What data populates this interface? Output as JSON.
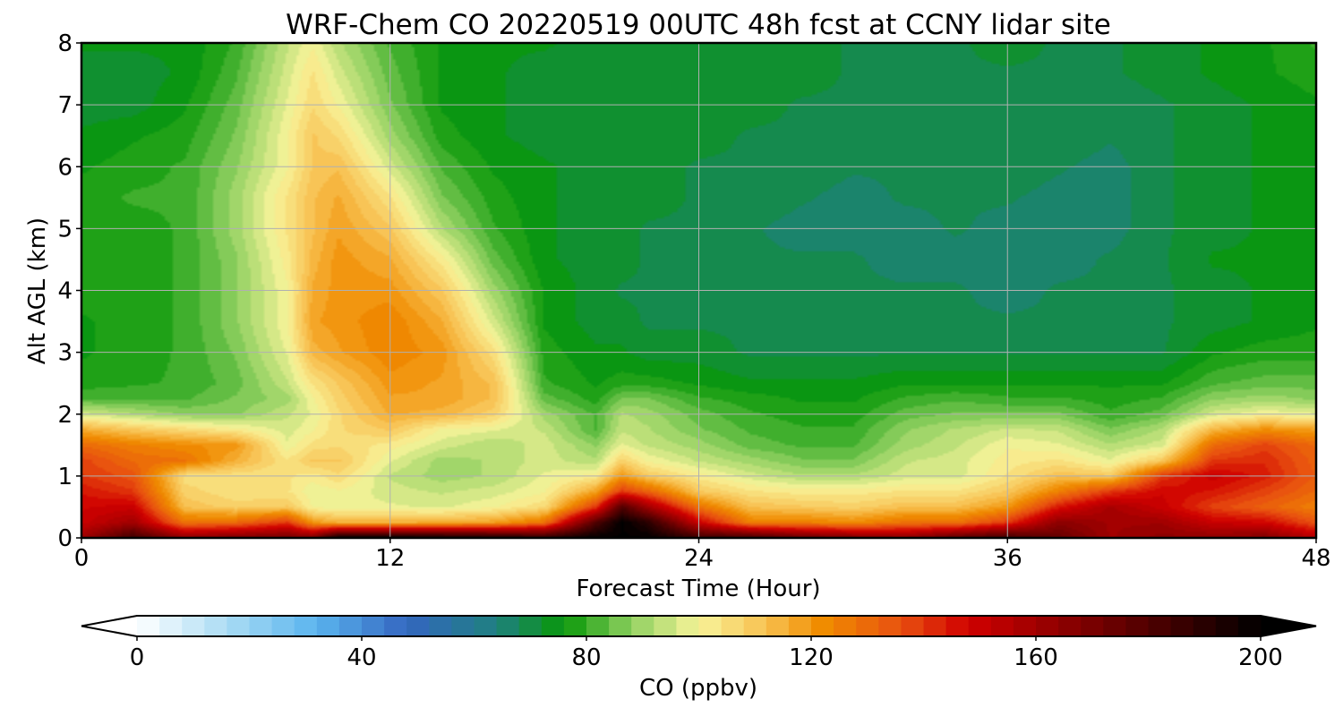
{
  "chart_data": {
    "type": "heatmap",
    "title": "WRF-Chem CO  20220519 00UTC 48h fcst at CCNY lidar site",
    "xlabel": "Forecast Time (Hour)",
    "ylabel": "Alt AGL (km)",
    "xlim": [
      0,
      48
    ],
    "ylim": [
      0,
      8
    ],
    "x_ticks": [
      0,
      12,
      24,
      36,
      48
    ],
    "y_ticks": [
      0,
      1,
      2,
      3,
      4,
      5,
      6,
      7,
      8
    ],
    "grid": true,
    "colorbar": {
      "label": "CO  (ppbv)",
      "range": [
        0,
        200
      ],
      "ticks": [
        0,
        40,
        80,
        120,
        160,
        200
      ],
      "extend": "both",
      "colors": [
        {
          "v": 0,
          "c": "#ffffff"
        },
        {
          "v": 16,
          "c": "#aadcf4"
        },
        {
          "v": 32,
          "c": "#5ab4ee"
        },
        {
          "v": 48,
          "c": "#3466c0"
        },
        {
          "v": 64,
          "c": "#1f8080"
        },
        {
          "v": 76,
          "c": "#089808"
        },
        {
          "v": 88,
          "c": "#8fd060"
        },
        {
          "v": 100,
          "c": "#f8f49a"
        },
        {
          "v": 112,
          "c": "#f8c050"
        },
        {
          "v": 122,
          "c": "#f08c00"
        },
        {
          "v": 136,
          "c": "#e85010"
        },
        {
          "v": 148,
          "c": "#d00000"
        },
        {
          "v": 170,
          "c": "#780000"
        },
        {
          "v": 200,
          "c": "#000000"
        }
      ]
    },
    "y_levels_km": [
      0,
      0.25,
      0.5,
      0.75,
      1,
      1.25,
      1.5,
      1.75,
      2,
      2.25,
      2.5,
      3,
      3.5,
      4,
      4.5,
      5,
      5.5,
      6,
      6.5,
      7,
      7.5,
      8
    ],
    "x_hours": [
      0,
      2,
      4,
      6,
      8,
      9,
      10,
      12,
      14,
      16,
      18,
      20,
      21,
      22,
      24,
      26,
      28,
      30,
      32,
      34,
      36,
      38,
      40,
      42,
      44,
      46,
      48
    ],
    "co_ppbv": [
      [
        160,
        185,
        165,
        170,
        172,
        170,
        200,
        200,
        198,
        195,
        190,
        200,
        200,
        200,
        185,
        185,
        175,
        170,
        165,
        178,
        185,
        175,
        160,
        165,
        165,
        168,
        155
      ],
      [
        150,
        160,
        128,
        130,
        140,
        120,
        115,
        115,
        116,
        118,
        128,
        180,
        200,
        190,
        150,
        125,
        125,
        122,
        128,
        128,
        140,
        165,
        160,
        160,
        150,
        148,
        135
      ],
      [
        148,
        150,
        112,
        108,
        110,
        100,
        98,
        98,
        97,
        100,
        106,
        140,
        180,
        160,
        128,
        112,
        110,
        108,
        112,
        112,
        120,
        145,
        158,
        150,
        138,
        132,
        125
      ],
      [
        145,
        140,
        108,
        104,
        104,
        98,
        100,
        96,
        94,
        96,
        100,
        118,
        140,
        132,
        110,
        104,
        102,
        102,
        104,
        104,
        110,
        125,
        140,
        148,
        145,
        138,
        130
      ],
      [
        140,
        135,
        105,
        104,
        104,
        102,
        106,
        94,
        90,
        92,
        98,
        102,
        120,
        110,
        102,
        96,
        92,
        92,
        96,
        96,
        104,
        112,
        110,
        140,
        150,
        144,
        133
      ],
      [
        138,
        130,
        128,
        115,
        104,
        110,
        110,
        98,
        90,
        92,
        96,
        92,
        108,
        100,
        94,
        90,
        86,
        86,
        94,
        96,
        102,
        104,
        98,
        110,
        140,
        142,
        132
      ],
      [
        130,
        125,
        122,
        120,
        98,
        105,
        106,
        102,
        96,
        92,
        96,
        88,
        98,
        94,
        90,
        84,
        82,
        82,
        90,
        94,
        100,
        98,
        92,
        96,
        130,
        138,
        130
      ],
      [
        116,
        110,
        106,
        102,
        96,
        100,
        106,
        110,
        100,
        98,
        94,
        82,
        94,
        92,
        86,
        82,
        80,
        80,
        88,
        92,
        95,
        94,
        86,
        92,
        114,
        122,
        118
      ],
      [
        96,
        92,
        88,
        88,
        94,
        98,
        106,
        116,
        114,
        108,
        90,
        82,
        92,
        90,
        84,
        80,
        78,
        78,
        84,
        86,
        86,
        86,
        80,
        84,
        96,
        100,
        98
      ],
      [
        82,
        82,
        82,
        86,
        90,
        100,
        108,
        118,
        118,
        112,
        84,
        78,
        86,
        86,
        80,
        78,
        76,
        76,
        80,
        82,
        80,
        80,
        78,
        80,
        88,
        90,
        88
      ],
      [
        78,
        79,
        80,
        84,
        94,
        104,
        110,
        120,
        118,
        112,
        80,
        76,
        78,
        78,
        76,
        74,
        74,
        74,
        76,
        76,
        76,
        76,
        76,
        76,
        82,
        84,
        84
      ],
      [
        76,
        78,
        80,
        86,
        98,
        114,
        118,
        124,
        120,
        105,
        78,
        74,
        74,
        72,
        72,
        70,
        70,
        70,
        70,
        70,
        70,
        70,
        70,
        70,
        76,
        78,
        78
      ],
      [
        76,
        78,
        80,
        88,
        100,
        118,
        120,
        124,
        116,
        96,
        76,
        72,
        72,
        70,
        70,
        70,
        68,
        68,
        68,
        68,
        68,
        68,
        68,
        70,
        72,
        74,
        76
      ],
      [
        78,
        78,
        80,
        88,
        100,
        116,
        120,
        120,
        110,
        90,
        76,
        72,
        70,
        70,
        70,
        68,
        68,
        68,
        68,
        68,
        66,
        68,
        68,
        70,
        72,
        74,
        76
      ],
      [
        78,
        78,
        80,
        88,
        102,
        114,
        120,
        116,
        102,
        84,
        74,
        72,
        72,
        70,
        70,
        68,
        68,
        68,
        66,
        66,
        66,
        66,
        68,
        70,
        74,
        74,
        76
      ],
      [
        78,
        78,
        80,
        90,
        104,
        112,
        118,
        110,
        92,
        80,
        74,
        72,
        72,
        70,
        70,
        68,
        66,
        66,
        66,
        68,
        66,
        66,
        66,
        70,
        72,
        74,
        76
      ],
      [
        78,
        80,
        80,
        90,
        104,
        112,
        116,
        104,
        86,
        78,
        74,
        72,
        72,
        72,
        70,
        70,
        68,
        66,
        68,
        68,
        68,
        66,
        66,
        70,
        72,
        74,
        76
      ],
      [
        76,
        78,
        80,
        88,
        100,
        110,
        112,
        96,
        82,
        76,
        74,
        72,
        72,
        72,
        70,
        70,
        70,
        68,
        68,
        70,
        70,
        68,
        66,
        70,
        72,
        74,
        76
      ],
      [
        74,
        76,
        78,
        86,
        100,
        110,
        106,
        90,
        78,
        74,
        72,
        72,
        72,
        72,
        72,
        70,
        70,
        70,
        68,
        70,
        70,
        70,
        68,
        70,
        72,
        74,
        76
      ],
      [
        72,
        72,
        76,
        84,
        98,
        106,
        100,
        86,
        76,
        74,
        72,
        72,
        72,
        72,
        72,
        72,
        70,
        70,
        68,
        70,
        70,
        70,
        68,
        70,
        72,
        74,
        76
      ],
      [
        72,
        72,
        74,
        82,
        96,
        104,
        96,
        84,
        76,
        74,
        72,
        72,
        72,
        72,
        72,
        72,
        72,
        70,
        70,
        70,
        70,
        70,
        70,
        72,
        74,
        76,
        78
      ],
      [
        74,
        74,
        74,
        80,
        94,
        100,
        92,
        82,
        76,
        74,
        74,
        72,
        72,
        72,
        72,
        72,
        72,
        70,
        70,
        70,
        72,
        70,
        70,
        72,
        74,
        76,
        80
      ]
    ]
  }
}
